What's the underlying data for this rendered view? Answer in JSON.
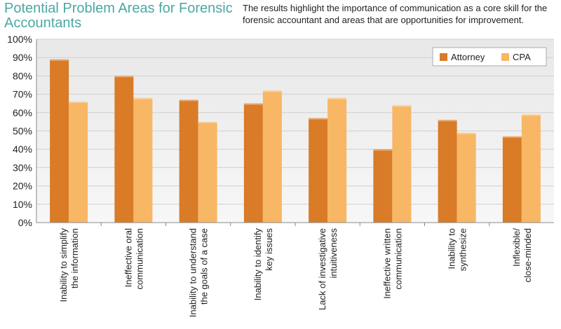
{
  "header": {
    "title": "Potential Problem Areas for Forensic Accountants",
    "subtitle": "The results highlight the importance of communication as a core skill for the forensic accountant and areas that are opportunities for improvement."
  },
  "chart_data": {
    "type": "bar",
    "categories": [
      [
        "Inability to simplify",
        "the information"
      ],
      [
        "Ineffective oral",
        "communication"
      ],
      [
        "Inability to understand",
        "the goals of a case"
      ],
      [
        "Inability to identify",
        "key issues"
      ],
      [
        "Lack of investigative",
        "intuitiveness"
      ],
      [
        "Ineffective written",
        "communication"
      ],
      [
        "Inability to",
        "synthesize"
      ],
      [
        "Inflexible/",
        "close-minded"
      ]
    ],
    "series": [
      {
        "name": "Attorney",
        "values": [
          89,
          80,
          67,
          65,
          57,
          40,
          56,
          47
        ],
        "color": "#d97b27"
      },
      {
        "name": "CPA",
        "values": [
          66,
          68,
          55,
          72,
          68,
          64,
          49,
          59
        ],
        "color": "#f7b764"
      }
    ],
    "y_ticks": [
      "0%",
      "10%",
      "20%",
      "30%",
      "40%",
      "50%",
      "60%",
      "70%",
      "80%",
      "90%",
      "100%"
    ],
    "ylim": [
      0,
      100
    ],
    "grid": true,
    "legend": "top-right",
    "title": "",
    "xlabel": "",
    "ylabel": ""
  }
}
